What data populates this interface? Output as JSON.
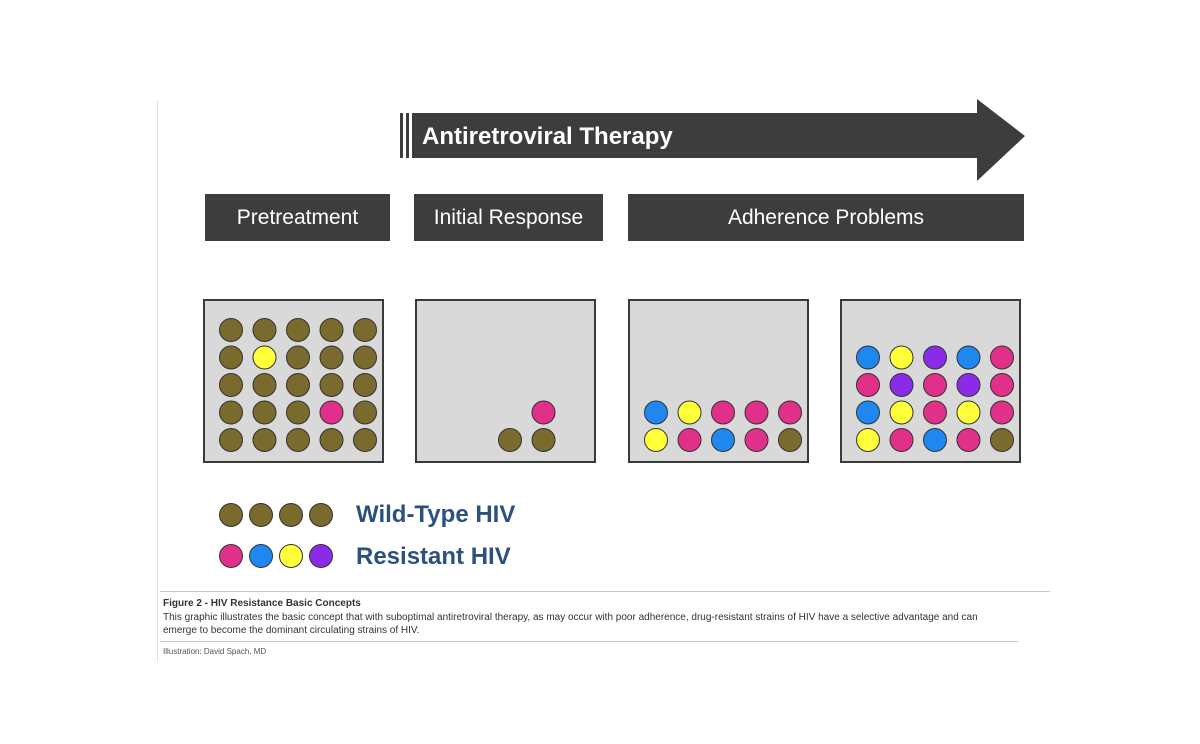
{
  "colors": {
    "wild": "#7b6a2e",
    "yellow": "#ffff3a",
    "magenta": "#e0308a",
    "blue": "#1e88f0",
    "purple": "#8a2be8",
    "panel_bg": "#d9d9d9",
    "bar_dark": "#3d3d3d",
    "legend_text": "#2c5180"
  },
  "arrow": {
    "label": "Antiretroviral Therapy"
  },
  "phases": [
    {
      "label": "Pretreatment"
    },
    {
      "label": "Initial Response"
    },
    {
      "label": "Adherence Problems"
    }
  ],
  "panels": [
    {
      "name": "pretreatment",
      "rows": [
        [
          "wild",
          "wild",
          "wild",
          "wild",
          "wild"
        ],
        [
          "wild",
          "yellow",
          "wild",
          "wild",
          "wild"
        ],
        [
          "wild",
          "wild",
          "wild",
          "wild",
          "wild"
        ],
        [
          "wild",
          "wild",
          "wild",
          "magenta",
          "wild"
        ],
        [
          "wild",
          "wild",
          "wild",
          "wild",
          "wild"
        ]
      ]
    },
    {
      "name": "initial-response",
      "rows": [
        [
          null,
          null,
          null,
          null,
          null
        ],
        [
          null,
          null,
          null,
          null,
          null
        ],
        [
          null,
          null,
          null,
          null,
          null
        ],
        [
          null,
          null,
          null,
          "magenta",
          null
        ],
        [
          null,
          null,
          "wild",
          "wild",
          null
        ]
      ]
    },
    {
      "name": "adherence-early",
      "rows": [
        [
          null,
          null,
          null,
          null,
          null
        ],
        [
          null,
          null,
          null,
          null,
          null
        ],
        [
          null,
          null,
          null,
          null,
          null
        ],
        [
          "blue",
          "yellow",
          "magenta",
          "magenta",
          "magenta"
        ],
        [
          "yellow",
          "magenta",
          "blue",
          "magenta",
          "wild"
        ]
      ]
    },
    {
      "name": "adherence-late",
      "rows": [
        [
          null,
          null,
          null,
          null,
          null
        ],
        [
          "blue",
          "yellow",
          "purple",
          "blue",
          "magenta"
        ],
        [
          "magenta",
          "purple",
          "magenta",
          "purple",
          "magenta"
        ],
        [
          "blue",
          "yellow",
          "magenta",
          "yellow",
          "magenta"
        ],
        [
          "yellow",
          "magenta",
          "blue",
          "magenta",
          "wild"
        ]
      ]
    }
  ],
  "legend": [
    {
      "label": "Wild-Type HIV",
      "dots": [
        "wild",
        "wild",
        "wild",
        "wild"
      ]
    },
    {
      "label": "Resistant HIV",
      "dots": [
        "magenta",
        "blue",
        "yellow",
        "purple"
      ]
    }
  ],
  "caption": {
    "title": "Figure 2 - HIV Resistance Basic Concepts",
    "text": "This graphic illustrates the basic concept that with suboptimal antiretroviral therapy, as may occur with poor adherence, drug-resistant strains of HIV have a selective advantage and can emerge to become the dominant circulating strains of HIV.",
    "credit": "Illustration: David Spach, MD"
  }
}
